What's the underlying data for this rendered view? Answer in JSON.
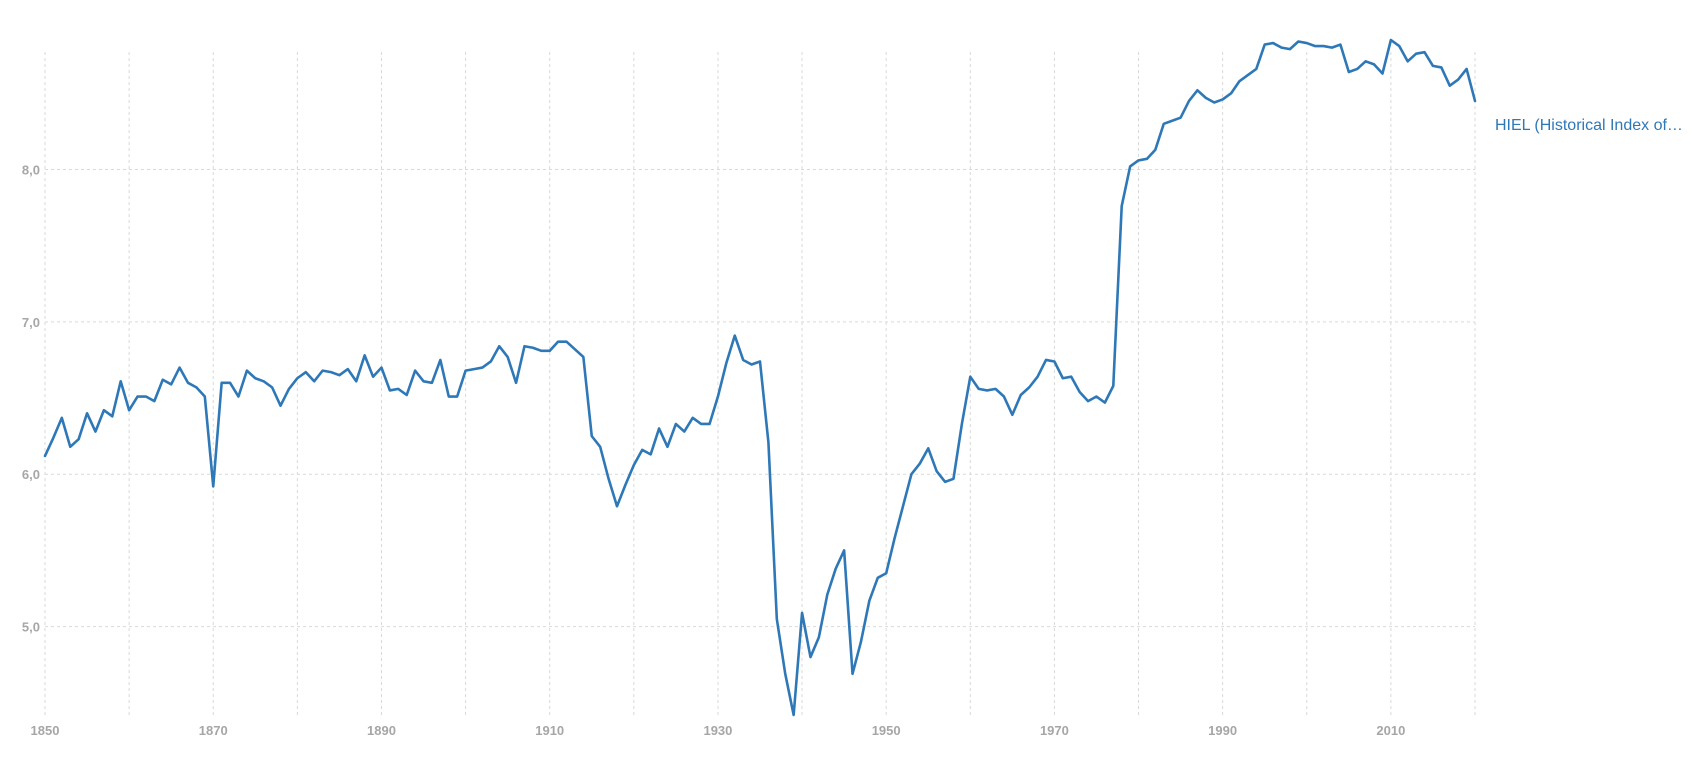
{
  "colors": {
    "series": "#2e78b7",
    "grid": "#d9d9d9",
    "tick": "#a6a6a6"
  },
  "chart_data": {
    "type": "line",
    "title": "",
    "xlabel": "",
    "ylabel": "",
    "xlim": [
      1850,
      2020
    ],
    "ylim": [
      4.4,
      8.85
    ],
    "grid": true,
    "legend": "inline-right",
    "x_ticks": [
      {
        "value": 1850,
        "label": "1850"
      },
      {
        "value": 1870,
        "label": "1870"
      },
      {
        "value": 1890,
        "label": "1890"
      },
      {
        "value": 1910,
        "label": "1910"
      },
      {
        "value": 1930,
        "label": "1930"
      },
      {
        "value": 1950,
        "label": "1950"
      },
      {
        "value": 1970,
        "label": "1970"
      },
      {
        "value": 1990,
        "label": "1990"
      },
      {
        "value": 2010,
        "label": "2010"
      }
    ],
    "x_minor_gridlines": [
      1860,
      1880,
      1900,
      1920,
      1940,
      1960,
      1980,
      2000,
      2020
    ],
    "y_ticks": [
      {
        "value": 5.0,
        "label": "5,0"
      },
      {
        "value": 6.0,
        "label": "6,0"
      },
      {
        "value": 7.0,
        "label": "7,0"
      },
      {
        "value": 8.0,
        "label": "8,0"
      }
    ],
    "series": [
      {
        "name": "HIEL (Historical Index of…",
        "x": [
          1850,
          1851,
          1852,
          1853,
          1854,
          1855,
          1856,
          1857,
          1858,
          1859,
          1860,
          1861,
          1862,
          1863,
          1864,
          1865,
          1866,
          1867,
          1868,
          1869,
          1870,
          1871,
          1872,
          1873,
          1874,
          1875,
          1876,
          1877,
          1878,
          1879,
          1880,
          1881,
          1882,
          1883,
          1884,
          1885,
          1886,
          1887,
          1888,
          1889,
          1890,
          1891,
          1892,
          1893,
          1894,
          1895,
          1896,
          1897,
          1898,
          1899,
          1900,
          1901,
          1902,
          1903,
          1904,
          1905,
          1906,
          1907,
          1908,
          1909,
          1910,
          1911,
          1912,
          1913,
          1914,
          1915,
          1916,
          1917,
          1918,
          1919,
          1920,
          1921,
          1922,
          1923,
          1924,
          1925,
          1926,
          1927,
          1928,
          1929,
          1930,
          1931,
          1932,
          1933,
          1934,
          1935,
          1936,
          1937,
          1938,
          1939,
          1940,
          1941,
          1942,
          1943,
          1944,
          1945,
          1946,
          1947,
          1948,
          1949,
          1950,
          1951,
          1952,
          1953,
          1954,
          1955,
          1956,
          1957,
          1958,
          1959,
          1960,
          1961,
          1962,
          1963,
          1964,
          1965,
          1966,
          1967,
          1968,
          1969,
          1970,
          1971,
          1972,
          1973,
          1974,
          1975,
          1976,
          1977,
          1978,
          1979,
          1980,
          1981,
          1982,
          1983,
          1984,
          1985,
          1986,
          1987,
          1988,
          1989,
          1990,
          1991,
          1992,
          1993,
          1994,
          1995,
          1996,
          1997,
          1998,
          1999,
          2000,
          2001,
          2002,
          2003,
          2004,
          2005,
          2006,
          2007,
          2008,
          2009,
          2010,
          2011,
          2012,
          2013,
          2014,
          2015,
          2016,
          2017,
          2018,
          2019,
          2020
        ],
        "values": [
          6.12,
          6.24,
          6.37,
          6.18,
          6.23,
          6.4,
          6.28,
          6.42,
          6.38,
          6.61,
          6.42,
          6.51,
          6.51,
          6.48,
          6.62,
          6.59,
          6.7,
          6.6,
          6.57,
          6.51,
          5.92,
          6.6,
          6.6,
          6.51,
          6.68,
          6.63,
          6.61,
          6.57,
          6.45,
          6.56,
          6.63,
          6.67,
          6.61,
          6.68,
          6.67,
          6.65,
          6.69,
          6.61,
          6.78,
          6.64,
          6.7,
          6.55,
          6.56,
          6.52,
          6.68,
          6.61,
          6.6,
          6.75,
          6.51,
          6.51,
          6.68,
          6.69,
          6.7,
          6.74,
          6.84,
          6.77,
          6.6,
          6.84,
          6.83,
          6.81,
          6.81,
          6.87,
          6.87,
          6.82,
          6.77,
          6.25,
          6.18,
          5.97,
          5.79,
          5.93,
          6.06,
          6.16,
          6.13,
          6.3,
          6.18,
          6.33,
          6.28,
          6.37,
          6.33,
          6.33,
          6.51,
          6.73,
          6.91,
          6.75,
          6.72,
          6.74,
          6.21,
          5.05,
          4.69,
          4.42,
          5.09,
          4.8,
          4.93,
          5.21,
          5.38,
          5.5,
          4.69,
          4.9,
          5.17,
          5.32,
          5.35,
          5.58,
          5.79,
          6.0,
          6.07,
          6.17,
          6.02,
          5.95,
          5.97,
          6.33,
          6.64,
          6.56,
          6.55,
          6.56,
          6.51,
          6.39,
          6.52,
          6.57,
          6.64,
          6.75,
          6.74,
          6.63,
          6.64,
          6.54,
          6.48,
          6.51,
          6.47,
          6.58,
          7.76,
          8.02,
          8.06,
          8.07,
          8.13,
          8.3,
          8.32,
          8.34,
          8.45,
          8.52,
          8.47,
          8.44,
          8.46,
          8.5,
          8.58,
          8.62,
          8.66,
          8.82,
          8.83,
          8.8,
          8.79,
          8.84,
          8.83,
          8.81,
          8.81,
          8.8,
          8.82,
          8.64,
          8.66,
          8.71,
          8.69,
          8.63,
          8.85,
          8.81,
          8.71,
          8.76,
          8.77,
          8.68,
          8.67,
          8.55,
          8.59,
          8.66,
          8.45
        ]
      }
    ]
  }
}
